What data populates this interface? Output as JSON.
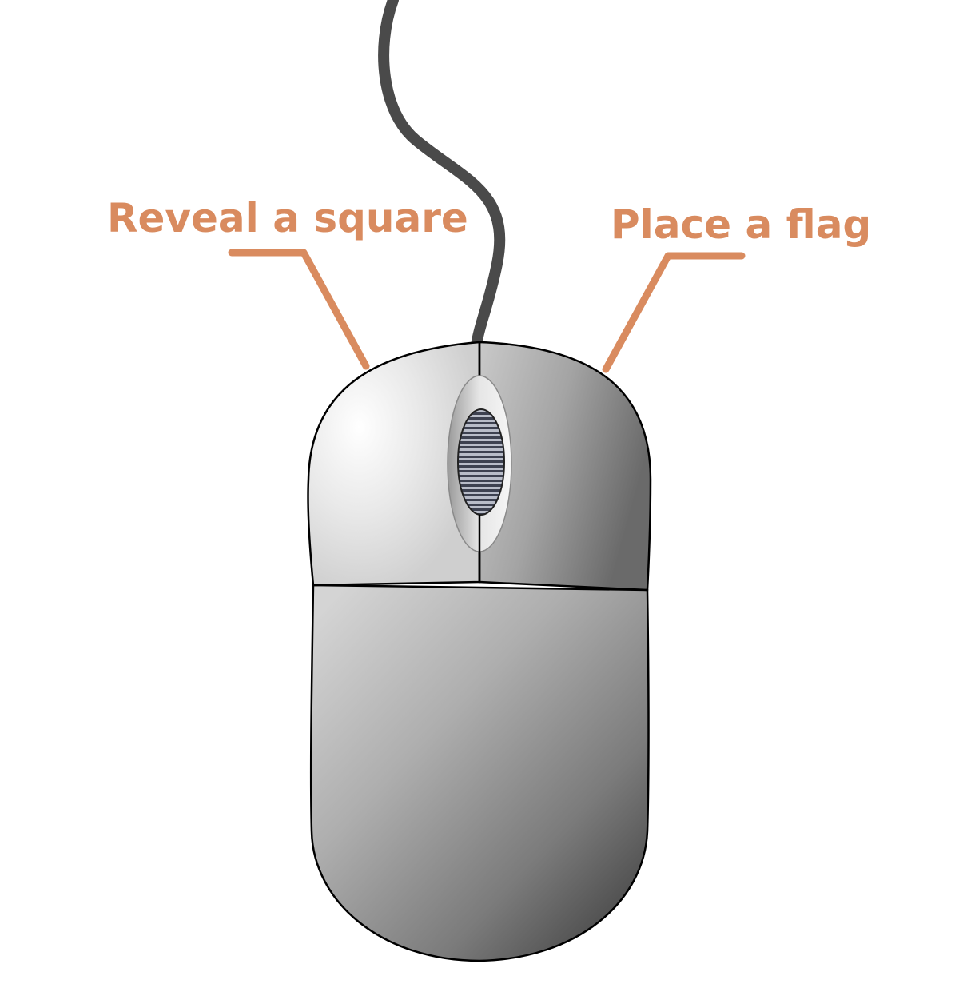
{
  "annotations": {
    "left_button": {
      "label": "Reveal a square"
    },
    "right_button": {
      "label": "Place a flag"
    }
  },
  "colors": {
    "callout": "#d98b5f",
    "cable": "#4a4a4a",
    "outline": "#000000",
    "body_light": "#f2f2f2",
    "body_dark": "#3a3a3a",
    "background": "#ffffff"
  },
  "icons": {
    "device": "computer-mouse-icon",
    "wheel": "scroll-wheel-icon"
  }
}
